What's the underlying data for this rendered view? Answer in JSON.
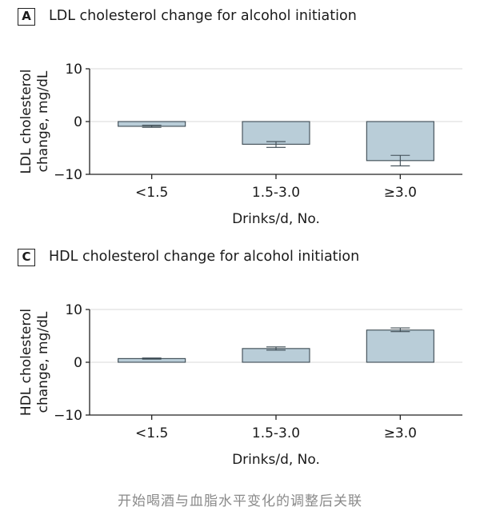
{
  "colors": {
    "bar_fill": "#b9cdd8",
    "bar_stroke": "#3c4a52",
    "grid": "#d8d8d8",
    "axis": "#222222",
    "caption": "#8a8a8a"
  },
  "caption": "开始喝酒与血脂水平变化的调整后关联",
  "chart_data": [
    {
      "panel": "A",
      "type": "bar",
      "title": "LDL cholesterol change for alcohol initiation",
      "ylabel_lines": [
        "LDL cholesterol",
        "change, mg/dL"
      ],
      "xlabel": "Drinks/d, No.",
      "ylim": [
        -10,
        10
      ],
      "yticks": [
        10,
        0,
        -10
      ],
      "grid": true,
      "categories": [
        "<1.5",
        "1.5-3.0",
        "≥3.0"
      ],
      "values": [
        -0.9,
        -4.3,
        -7.4
      ],
      "error": [
        [
          -1.1,
          -0.7
        ],
        [
          -4.9,
          -3.8
        ],
        [
          -8.4,
          -6.4
        ]
      ]
    },
    {
      "panel": "C",
      "type": "bar",
      "title": "HDL cholesterol change for alcohol initiation",
      "ylabel_lines": [
        "HDL cholesterol",
        "change, mg/dL"
      ],
      "xlabel": "Drinks/d, No.",
      "ylim": [
        -10,
        10
      ],
      "yticks": [
        10,
        0,
        -10
      ],
      "grid": true,
      "categories": [
        "<1.5",
        "1.5-3.0",
        "≥3.0"
      ],
      "values": [
        0.7,
        2.6,
        6.1
      ],
      "error": [
        [
          0.6,
          0.8
        ],
        [
          2.3,
          2.9
        ],
        [
          5.8,
          6.5
        ]
      ]
    }
  ]
}
